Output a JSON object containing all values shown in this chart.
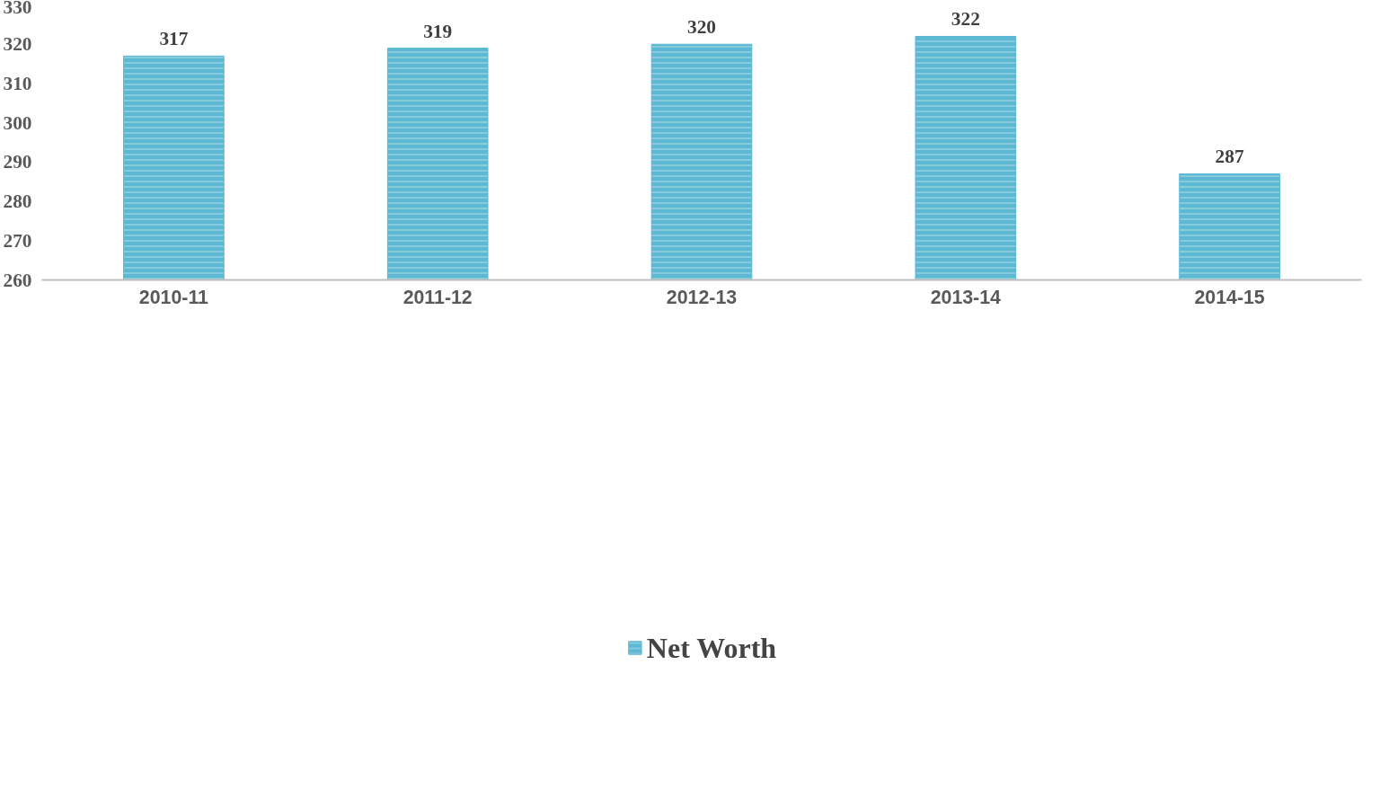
{
  "chart_data": {
    "type": "bar",
    "categories": [
      "2010-11",
      "2011-12",
      "2012-13",
      "2013-14",
      "2014-15"
    ],
    "series": [
      {
        "name": "Net Worth",
        "color": "#5db8d3",
        "values": [
          317,
          319,
          320,
          322,
          287
        ]
      }
    ],
    "ylim": [
      260,
      330
    ],
    "yticks": [
      260,
      270,
      280,
      290,
      300,
      310,
      320,
      330
    ],
    "data_labels": true,
    "grid": false,
    "legend": "bottom"
  }
}
